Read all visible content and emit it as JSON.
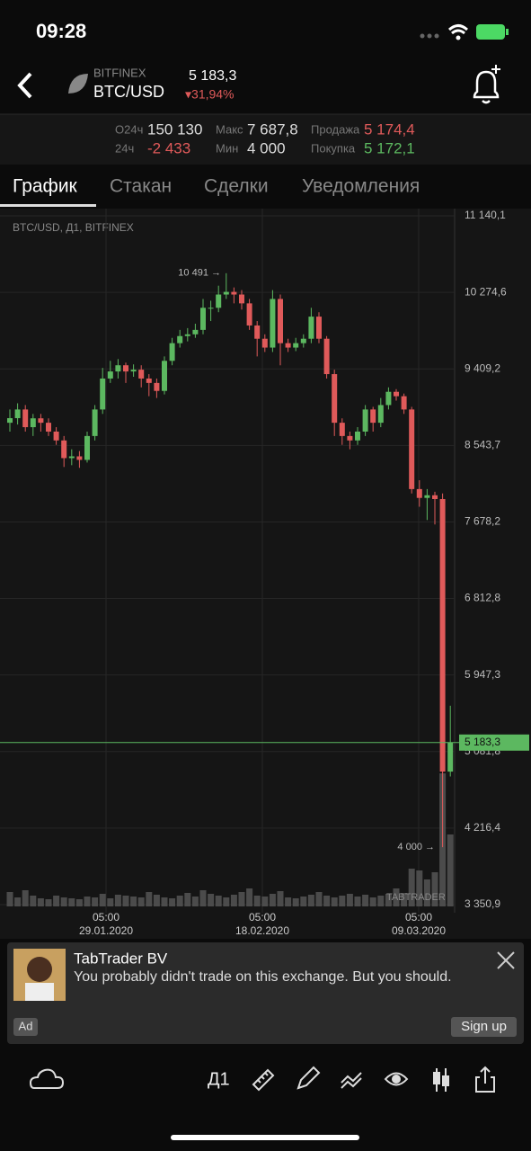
{
  "status": {
    "time": "09:28"
  },
  "header": {
    "exchange": "BITFINEX",
    "pair": "BTC/USD",
    "price": "5 183,3",
    "change": "▾31,94%"
  },
  "stats": {
    "row1": [
      "О24ч",
      "150 130",
      "Макс",
      "7 687,8",
      "Продажа",
      "5 174,4"
    ],
    "row2": [
      "24ч",
      "-2 433",
      "Мин",
      "4 000",
      "Покупка",
      "5 172,1"
    ]
  },
  "tabs": [
    "График",
    "Стакан",
    "Сделки",
    "Уведомления"
  ],
  "chart_data": {
    "type": "candlestick",
    "title": "BTC/USD, Д1, BITFINEX",
    "up_color": "#5cb860",
    "down_color": "#e05a5a",
    "ylim": [
      3350.9,
      11140.1
    ],
    "yticks": [
      {
        "value": 3350.9,
        "label": "3 350,9"
      },
      {
        "value": 4216.4,
        "label": "4 216,4"
      },
      {
        "value": 5081.8,
        "label": "5 081,8"
      },
      {
        "value": 5947.3,
        "label": "5 947,3"
      },
      {
        "value": 6812.8,
        "label": "6 812,8"
      },
      {
        "value": 7678.2,
        "label": "7 678,2"
      },
      {
        "value": 8543.7,
        "label": "8 543,7"
      },
      {
        "value": 9409.2,
        "label": "9 409,2"
      },
      {
        "value": 10274.6,
        "label": "10 274,6"
      },
      {
        "value": 11140.1,
        "label": "11 140,1"
      }
    ],
    "open": [
      8800,
      8852,
      8950,
      8750,
      8850,
      8800,
      8700,
      8600,
      8400,
      8420,
      8380,
      8650,
      8950,
      9300,
      9380,
      9450,
      9380,
      9400,
      9300,
      9250,
      9160,
      9500,
      9700,
      9780,
      9800,
      9850,
      10100,
      10100,
      10250,
      10280,
      10250,
      10150,
      9900,
      9750,
      9650,
      10200,
      9700,
      9650,
      9700,
      9750,
      10000,
      9750,
      9350,
      8800,
      8650,
      8600,
      8700,
      8950,
      8800,
      9000,
      9150,
      9100,
      8950,
      8050,
      7950,
      7980,
      7937,
      4855
    ],
    "high": [
      8950,
      9020,
      9000,
      8900,
      8900,
      8850,
      8750,
      8650,
      8500,
      8480,
      8700,
      9000,
      9420,
      9500,
      9520,
      9480,
      9460,
      9450,
      9350,
      9300,
      9550,
      9760,
      9850,
      9870,
      9920,
      10200,
      10180,
      10350,
      10491,
      10330,
      10300,
      10200,
      9950,
      9800,
      10300,
      10250,
      9750,
      9760,
      9800,
      10100,
      10050,
      9780,
      9400,
      8850,
      8700,
      8750,
      9000,
      8980,
      9080,
      9200,
      9180,
      9130,
      8980,
      8150,
      8050,
      8020,
      8000,
      5600
    ],
    "low": [
      8700,
      8780,
      8700,
      8650,
      8700,
      8650,
      8550,
      8300,
      8320,
      8290,
      8350,
      8600,
      8900,
      9250,
      9300,
      9250,
      9320,
      9200,
      9100,
      9080,
      9120,
      9450,
      9650,
      9720,
      9760,
      9800,
      9950,
      10050,
      10200,
      10150,
      10080,
      9850,
      9550,
      9600,
      9600,
      9450,
      9600,
      9610,
      9650,
      9700,
      9700,
      9300,
      8650,
      8550,
      8500,
      8550,
      8650,
      8700,
      8750,
      8950,
      9050,
      8900,
      8000,
      7850,
      7700,
      7650,
      4000,
      4800
    ],
    "close": [
      8852,
      8950,
      8750,
      8850,
      8800,
      8700,
      8600,
      8400,
      8420,
      8380,
      8650,
      8950,
      9300,
      9380,
      9450,
      9380,
      9400,
      9300,
      9250,
      9160,
      9500,
      9700,
      9780,
      9800,
      9850,
      10100,
      10100,
      10250,
      10280,
      10250,
      10150,
      9900,
      9750,
      9650,
      10200,
      9700,
      9650,
      9700,
      9750,
      10000,
      9750,
      9350,
      8800,
      8650,
      8600,
      8700,
      8950,
      8800,
      9000,
      9150,
      9100,
      8950,
      8050,
      7950,
      7980,
      7937,
      4855,
      5183.3
    ],
    "volume": [
      16,
      10,
      18,
      12,
      9,
      8,
      12,
      10,
      9,
      8,
      11,
      10,
      14,
      9,
      13,
      12,
      11,
      10,
      16,
      13,
      10,
      9,
      12,
      15,
      11,
      18,
      14,
      12,
      10,
      13,
      16,
      20,
      12,
      11,
      14,
      17,
      10,
      9,
      11,
      13,
      16,
      12,
      10,
      12,
      14,
      11,
      13,
      10,
      12,
      14,
      20,
      15,
      42,
      40,
      30,
      38,
      148,
      80
    ],
    "current": {
      "value": 5183.3,
      "label": "5 183,3"
    },
    "annotations": [
      {
        "value": 10491,
        "label": "10 491 →"
      },
      {
        "value": 4000,
        "label": "4 000 →"
      }
    ],
    "xlabels": [
      {
        "time": "05:00",
        "date": "29.01.2020"
      },
      {
        "time": "05:00",
        "date": "18.02.2020"
      },
      {
        "time": "05:00",
        "date": "09.03.2020"
      }
    ],
    "watermark": "TABTRADER"
  },
  "ad": {
    "name": "TabTrader BV",
    "text": "You probably didn't trade on this exchange. But you should.",
    "badge": "Ad",
    "button": "Sign up"
  },
  "toolbar": {
    "period": "Д1"
  }
}
